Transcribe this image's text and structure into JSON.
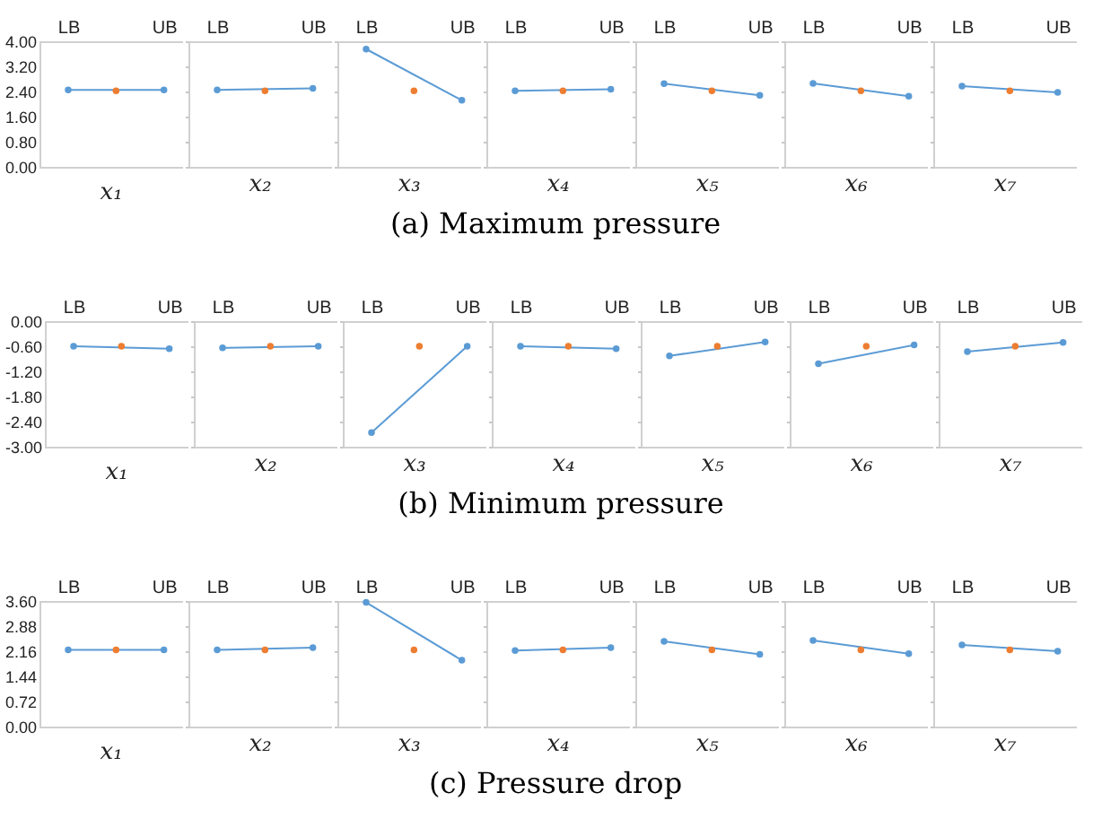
{
  "chart_data": [
    {
      "type": "line",
      "xlabel": "x₁",
      "marker": "circle",
      "categories": [
        "LB",
        null,
        "UB"
      ],
      "ylim": [
        0,
        4
      ],
      "yticks": [
        {
          "value": 0,
          "label": "0.00"
        },
        {
          "value": 0.8,
          "label": "0.80"
        },
        {
          "value": 1.6,
          "label": "1.60"
        },
        {
          "value": 2.4,
          "label": "2.40"
        },
        {
          "value": 3.2,
          "label": "3.20"
        },
        {
          "value": 4,
          "label": "4.00"
        }
      ],
      "series": [
        {
          "color": "#5b9bd5",
          "x": [
            "LB",
            "UB"
          ],
          "values": [
            2.45,
            2.45
          ]
        },
        {
          "type": "scatter",
          "color": "#ed7d31",
          "values": [
            null,
            2.42,
            null
          ]
        }
      ]
    },
    {
      "type": "line",
      "xlabel": "x₂",
      "marker": "circle",
      "tick_labels": "x",
      "categories": [
        "LB",
        null,
        "UB"
      ],
      "ylim": [
        0,
        4
      ],
      "yticks": [
        0,
        0.8,
        1.6,
        2.4,
        3.2,
        4
      ],
      "series": [
        {
          "color": "#5b9bd5",
          "x": [
            "LB",
            "UB"
          ],
          "values": [
            2.45,
            2.5
          ]
        },
        {
          "type": "scatter",
          "color": "#ed7d31",
          "values": [
            null,
            2.42,
            null
          ]
        }
      ]
    },
    {
      "type": "line",
      "xlabel": "x₃",
      "marker": "circle",
      "tick_labels": "x",
      "categories": [
        "LB",
        null,
        "UB"
      ],
      "ylim": [
        0,
        4
      ],
      "yticks": [
        0,
        0.8,
        1.6,
        2.4,
        3.2,
        4
      ],
      "series": [
        {
          "color": "#5b9bd5",
          "x": [
            "LB",
            "UB"
          ],
          "values": [
            3.75,
            2.12
          ]
        },
        {
          "type": "scatter",
          "color": "#ed7d31",
          "values": [
            null,
            2.42,
            null
          ]
        }
      ]
    },
    {
      "type": "line",
      "title": "(a) Maximum pressure",
      "xlabel": "x₄",
      "marker": "circle",
      "tick_labels": "x",
      "categories": [
        "LB",
        null,
        "UB"
      ],
      "ylim": [
        0,
        4
      ],
      "yticks": [
        0,
        0.8,
        1.6,
        2.4,
        3.2,
        4
      ],
      "series": [
        {
          "color": "#5b9bd5",
          "x": [
            "LB",
            "UB"
          ],
          "values": [
            2.42,
            2.47
          ]
        },
        {
          "type": "scatter",
          "color": "#ed7d31",
          "values": [
            null,
            2.42,
            null
          ]
        }
      ]
    },
    {
      "type": "line",
      "xlabel": "x₅",
      "marker": "circle",
      "tick_labels": "x",
      "categories": [
        "LB",
        null,
        "UB"
      ],
      "ylim": [
        0,
        4
      ],
      "yticks": [
        0,
        0.8,
        1.6,
        2.4,
        3.2,
        4
      ],
      "series": [
        {
          "color": "#5b9bd5",
          "x": [
            "LB",
            "UB"
          ],
          "values": [
            2.65,
            2.28
          ]
        },
        {
          "type": "scatter",
          "color": "#ed7d31",
          "values": [
            null,
            2.42,
            null
          ]
        }
      ]
    },
    {
      "type": "line",
      "xlabel": "x₆",
      "marker": "circle",
      "tick_labels": "x",
      "categories": [
        "LB",
        null,
        "UB"
      ],
      "ylim": [
        0,
        4
      ],
      "yticks": [
        0,
        0.8,
        1.6,
        2.4,
        3.2,
        4
      ],
      "series": [
        {
          "color": "#5b9bd5",
          "x": [
            "LB",
            "UB"
          ],
          "values": [
            2.66,
            2.25
          ]
        },
        {
          "type": "scatter",
          "color": "#ed7d31",
          "values": [
            null,
            2.42,
            null
          ]
        }
      ]
    },
    {
      "type": "line",
      "xlabel": "x₇",
      "marker": "circle",
      "tick_labels": "x",
      "categories": [
        "LB",
        null,
        "UB"
      ],
      "ylim": [
        0,
        4
      ],
      "yticks": [
        0,
        0.8,
        1.6,
        2.4,
        3.2,
        4
      ],
      "series": [
        {
          "color": "#5b9bd5",
          "x": [
            "LB",
            "UB"
          ],
          "values": [
            2.57,
            2.37
          ]
        },
        {
          "type": "scatter",
          "color": "#ed7d31",
          "values": [
            null,
            2.42,
            null
          ]
        }
      ]
    },
    {
      "type": "line",
      "xlabel": "x₁",
      "marker": "circle",
      "categories": [
        "LB",
        null,
        "UB"
      ],
      "ylim": [
        -3,
        0
      ],
      "yticks": [
        {
          "value": -3,
          "label": "-3.00"
        },
        {
          "value": -2.4,
          "label": "-2.40"
        },
        {
          "value": -1.8,
          "label": "-1.80"
        },
        {
          "value": -1.2,
          "label": "-1.20"
        },
        {
          "value": -0.6,
          "label": "-0.60"
        },
        {
          "value": 0,
          "label": "0.00"
        }
      ],
      "series": [
        {
          "color": "#5b9bd5",
          "x": [
            "LB",
            "UB"
          ],
          "values": [
            -0.6,
            -0.66
          ]
        },
        {
          "type": "scatter",
          "color": "#ed7d31",
          "values": [
            null,
            -0.6,
            null
          ]
        }
      ]
    },
    {
      "type": "line",
      "xlabel": "x₂",
      "marker": "circle",
      "tick_labels": "x",
      "categories": [
        "LB",
        null,
        "UB"
      ],
      "ylim": [
        -3,
        0
      ],
      "yticks": [
        -3,
        -2.4,
        -1.8,
        -1.2,
        -0.6,
        0
      ],
      "series": [
        {
          "color": "#5b9bd5",
          "x": [
            "LB",
            "UB"
          ],
          "values": [
            -0.64,
            -0.6
          ]
        },
        {
          "type": "scatter",
          "color": "#ed7d31",
          "values": [
            null,
            -0.6,
            null
          ]
        }
      ]
    },
    {
      "type": "line",
      "xlabel": "x₃",
      "marker": "circle",
      "tick_labels": "x",
      "categories": [
        "LB",
        null,
        "UB"
      ],
      "ylim": [
        -3,
        0
      ],
      "yticks": [
        -3,
        -2.4,
        -1.8,
        -1.2,
        -0.6,
        0
      ],
      "series": [
        {
          "color": "#5b9bd5",
          "x": [
            "LB",
            "UB"
          ],
          "values": [
            -2.66,
            -0.6
          ]
        },
        {
          "type": "scatter",
          "color": "#ed7d31",
          "values": [
            null,
            -0.6,
            null
          ]
        }
      ]
    },
    {
      "type": "line",
      "title": "(b) Minimum pressure",
      "xlabel": "x₄",
      "marker": "circle",
      "tick_labels": "x",
      "categories": [
        "LB",
        null,
        "UB"
      ],
      "ylim": [
        -3,
        0
      ],
      "yticks": [
        -3,
        -2.4,
        -1.8,
        -1.2,
        -0.6,
        0
      ],
      "series": [
        {
          "color": "#5b9bd5",
          "x": [
            "LB",
            "UB"
          ],
          "values": [
            -0.6,
            -0.66
          ]
        },
        {
          "type": "scatter",
          "color": "#ed7d31",
          "values": [
            null,
            -0.6,
            null
          ]
        }
      ]
    },
    {
      "type": "line",
      "xlabel": "x₅",
      "marker": "circle",
      "tick_labels": "x",
      "categories": [
        "LB",
        null,
        "UB"
      ],
      "ylim": [
        -3,
        0
      ],
      "yticks": [
        -3,
        -2.4,
        -1.8,
        -1.2,
        -0.6,
        0
      ],
      "series": [
        {
          "color": "#5b9bd5",
          "x": [
            "LB",
            "UB"
          ],
          "values": [
            -0.83,
            -0.5
          ]
        },
        {
          "type": "scatter",
          "color": "#ed7d31",
          "values": [
            null,
            -0.6,
            null
          ]
        }
      ]
    },
    {
      "type": "line",
      "xlabel": "x₆",
      "marker": "circle",
      "tick_labels": "x",
      "categories": [
        "LB",
        null,
        "UB"
      ],
      "ylim": [
        -3,
        0
      ],
      "yticks": [
        -3,
        -2.4,
        -1.8,
        -1.2,
        -0.6,
        0
      ],
      "series": [
        {
          "color": "#5b9bd5",
          "x": [
            "LB",
            "UB"
          ],
          "values": [
            -1.02,
            -0.57
          ]
        },
        {
          "type": "scatter",
          "color": "#ed7d31",
          "values": [
            null,
            -0.6,
            null
          ]
        }
      ]
    },
    {
      "type": "line",
      "xlabel": "x₇",
      "marker": "circle",
      "tick_labels": "x",
      "categories": [
        "LB",
        null,
        "UB"
      ],
      "ylim": [
        -3,
        0
      ],
      "yticks": [
        -3,
        -2.4,
        -1.8,
        -1.2,
        -0.6,
        0
      ],
      "series": [
        {
          "color": "#5b9bd5",
          "x": [
            "LB",
            "UB"
          ],
          "values": [
            -0.73,
            -0.51
          ]
        },
        {
          "type": "scatter",
          "color": "#ed7d31",
          "values": [
            null,
            -0.6,
            null
          ]
        }
      ]
    },
    {
      "type": "line",
      "xlabel": "x₁",
      "marker": "circle",
      "categories": [
        "LB",
        null,
        "UB"
      ],
      "ylim": [
        0,
        3.6
      ],
      "yticks": [
        {
          "value": 0,
          "label": "0.00"
        },
        {
          "value": 0.72,
          "label": "0.72"
        },
        {
          "value": 1.44,
          "label": "1.44"
        },
        {
          "value": 2.16,
          "label": "2.16"
        },
        {
          "value": 2.88,
          "label": "2.88"
        },
        {
          "value": 3.6,
          "label": "3.60"
        }
      ],
      "series": [
        {
          "color": "#5b9bd5",
          "x": [
            "LB",
            "UB"
          ],
          "values": [
            2.2,
            2.2
          ]
        },
        {
          "type": "scatter",
          "color": "#ed7d31",
          "values": [
            null,
            2.2,
            null
          ]
        }
      ]
    },
    {
      "type": "line",
      "xlabel": "x₂",
      "marker": "circle",
      "tick_labels": "x",
      "categories": [
        "LB",
        null,
        "UB"
      ],
      "ylim": [
        0,
        3.6
      ],
      "yticks": [
        0,
        0.72,
        1.44,
        2.16,
        2.88,
        3.6
      ],
      "series": [
        {
          "color": "#5b9bd5",
          "x": [
            "LB",
            "UB"
          ],
          "values": [
            2.2,
            2.26
          ]
        },
        {
          "type": "scatter",
          "color": "#ed7d31",
          "values": [
            null,
            2.2,
            null
          ]
        }
      ]
    },
    {
      "type": "line",
      "xlabel": "x₃",
      "marker": "circle",
      "tick_labels": "x",
      "categories": [
        "LB",
        null,
        "UB"
      ],
      "ylim": [
        0,
        3.6
      ],
      "yticks": [
        0,
        0.72,
        1.44,
        2.16,
        2.88,
        3.6
      ],
      "series": [
        {
          "color": "#5b9bd5",
          "x": [
            "LB",
            "UB"
          ],
          "values": [
            3.56,
            1.9
          ]
        },
        {
          "type": "scatter",
          "color": "#ed7d31",
          "values": [
            null,
            2.2,
            null
          ]
        }
      ]
    },
    {
      "type": "line",
      "title": "(c) Pressure drop",
      "xlabel": "x₄",
      "marker": "circle",
      "tick_labels": "x",
      "categories": [
        "LB",
        null,
        "UB"
      ],
      "ylim": [
        0,
        3.6
      ],
      "yticks": [
        0,
        0.72,
        1.44,
        2.16,
        2.88,
        3.6
      ],
      "series": [
        {
          "color": "#5b9bd5",
          "x": [
            "LB",
            "UB"
          ],
          "values": [
            2.18,
            2.26
          ]
        },
        {
          "type": "scatter",
          "color": "#ed7d31",
          "values": [
            null,
            2.2,
            null
          ]
        }
      ]
    },
    {
      "type": "line",
      "xlabel": "x₅",
      "marker": "circle",
      "tick_labels": "x",
      "categories": [
        "LB",
        null,
        "UB"
      ],
      "ylim": [
        0,
        3.6
      ],
      "yticks": [
        0,
        0.72,
        1.44,
        2.16,
        2.88,
        3.6
      ],
      "series": [
        {
          "color": "#5b9bd5",
          "x": [
            "LB",
            "UB"
          ],
          "values": [
            2.44,
            2.07
          ]
        },
        {
          "type": "scatter",
          "color": "#ed7d31",
          "values": [
            null,
            2.2,
            null
          ]
        }
      ]
    },
    {
      "type": "line",
      "xlabel": "x₆",
      "marker": "circle",
      "tick_labels": "x",
      "categories": [
        "LB",
        null,
        "UB"
      ],
      "ylim": [
        0,
        3.6
      ],
      "yticks": [
        0,
        0.72,
        1.44,
        2.16,
        2.88,
        3.6
      ],
      "series": [
        {
          "color": "#5b9bd5",
          "x": [
            "LB",
            "UB"
          ],
          "values": [
            2.47,
            2.09
          ]
        },
        {
          "type": "scatter",
          "color": "#ed7d31",
          "values": [
            null,
            2.2,
            null
          ]
        }
      ]
    },
    {
      "type": "line",
      "xlabel": "x₇",
      "marker": "circle",
      "tick_labels": "x",
      "categories": [
        "LB",
        null,
        "UB"
      ],
      "ylim": [
        0,
        3.6
      ],
      "yticks": [
        0,
        0.72,
        1.44,
        2.16,
        2.88,
        3.6
      ],
      "series": [
        {
          "color": "#5b9bd5",
          "x": [
            "LB",
            "UB"
          ],
          "values": [
            2.34,
            2.16
          ]
        },
        {
          "type": "scatter",
          "color": "#ed7d31",
          "values": [
            null,
            2.2,
            null
          ]
        }
      ]
    }
  ]
}
